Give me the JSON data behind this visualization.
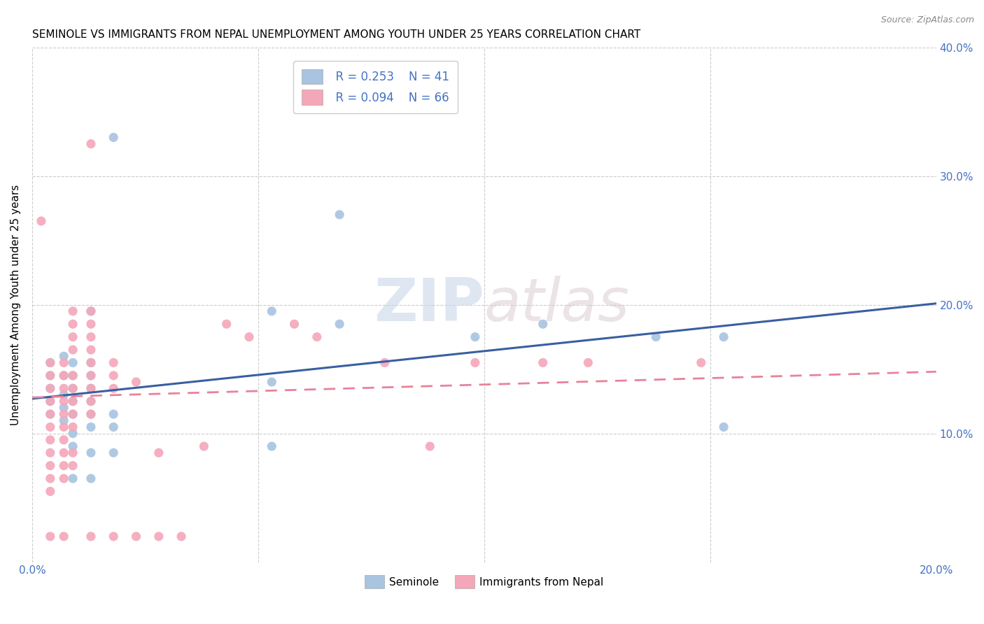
{
  "title": "SEMINOLE VS IMMIGRANTS FROM NEPAL UNEMPLOYMENT AMONG YOUTH UNDER 25 YEARS CORRELATION CHART",
  "source": "Source: ZipAtlas.com",
  "ylabel": "Unemployment Among Youth under 25 years",
  "xlim": [
    0.0,
    0.2
  ],
  "ylim": [
    0.0,
    0.4
  ],
  "xticks": [
    0.0,
    0.05,
    0.1,
    0.15,
    0.2
  ],
  "yticks": [
    0.0,
    0.1,
    0.2,
    0.3,
    0.4
  ],
  "xtick_labels": [
    "0.0%",
    "",
    "",
    "",
    "20.0%"
  ],
  "ytick_labels_left": [
    "",
    "",
    "",
    "",
    ""
  ],
  "ytick_labels_right": [
    "",
    "10.0%",
    "20.0%",
    "30.0%",
    "40.0%"
  ],
  "watermark_zip": "ZIP",
  "watermark_atlas": "atlas",
  "seminole_color": "#a8c4e0",
  "nepal_color": "#f4a7b9",
  "seminole_line_color": "#3a5fa0",
  "nepal_line_color": "#e8829a",
  "legend_R1": "R = 0.253",
  "legend_N1": "N = 41",
  "legend_R2": "R = 0.094",
  "legend_N2": "N = 66",
  "legend_label1": "Seminole",
  "legend_label2": "Immigrants from Nepal",
  "seminole_points": [
    [
      0.004,
      0.145
    ],
    [
      0.004,
      0.135
    ],
    [
      0.004,
      0.125
    ],
    [
      0.004,
      0.115
    ],
    [
      0.004,
      0.155
    ],
    [
      0.007,
      0.16
    ],
    [
      0.007,
      0.145
    ],
    [
      0.007,
      0.13
    ],
    [
      0.007,
      0.12
    ],
    [
      0.007,
      0.11
    ],
    [
      0.009,
      0.155
    ],
    [
      0.009,
      0.145
    ],
    [
      0.009,
      0.135
    ],
    [
      0.009,
      0.125
    ],
    [
      0.009,
      0.115
    ],
    [
      0.009,
      0.1
    ],
    [
      0.009,
      0.09
    ],
    [
      0.009,
      0.065
    ],
    [
      0.013,
      0.195
    ],
    [
      0.013,
      0.155
    ],
    [
      0.013,
      0.145
    ],
    [
      0.013,
      0.135
    ],
    [
      0.013,
      0.125
    ],
    [
      0.013,
      0.115
    ],
    [
      0.013,
      0.105
    ],
    [
      0.013,
      0.085
    ],
    [
      0.013,
      0.065
    ],
    [
      0.018,
      0.33
    ],
    [
      0.018,
      0.115
    ],
    [
      0.018,
      0.105
    ],
    [
      0.018,
      0.085
    ],
    [
      0.053,
      0.195
    ],
    [
      0.053,
      0.14
    ],
    [
      0.053,
      0.09
    ],
    [
      0.068,
      0.27
    ],
    [
      0.068,
      0.185
    ],
    [
      0.098,
      0.175
    ],
    [
      0.113,
      0.185
    ],
    [
      0.138,
      0.175
    ],
    [
      0.153,
      0.175
    ],
    [
      0.153,
      0.105
    ]
  ],
  "nepal_points": [
    [
      0.002,
      0.265
    ],
    [
      0.004,
      0.155
    ],
    [
      0.004,
      0.145
    ],
    [
      0.004,
      0.135
    ],
    [
      0.004,
      0.125
    ],
    [
      0.004,
      0.115
    ],
    [
      0.004,
      0.105
    ],
    [
      0.004,
      0.095
    ],
    [
      0.004,
      0.085
    ],
    [
      0.004,
      0.075
    ],
    [
      0.004,
      0.065
    ],
    [
      0.004,
      0.055
    ],
    [
      0.004,
      0.02
    ],
    [
      0.007,
      0.155
    ],
    [
      0.007,
      0.145
    ],
    [
      0.007,
      0.135
    ],
    [
      0.007,
      0.125
    ],
    [
      0.007,
      0.115
    ],
    [
      0.007,
      0.105
    ],
    [
      0.007,
      0.095
    ],
    [
      0.007,
      0.085
    ],
    [
      0.007,
      0.075
    ],
    [
      0.007,
      0.065
    ],
    [
      0.007,
      0.02
    ],
    [
      0.009,
      0.195
    ],
    [
      0.009,
      0.185
    ],
    [
      0.009,
      0.175
    ],
    [
      0.009,
      0.165
    ],
    [
      0.009,
      0.145
    ],
    [
      0.009,
      0.135
    ],
    [
      0.009,
      0.125
    ],
    [
      0.009,
      0.115
    ],
    [
      0.009,
      0.105
    ],
    [
      0.009,
      0.085
    ],
    [
      0.009,
      0.075
    ],
    [
      0.013,
      0.325
    ],
    [
      0.013,
      0.195
    ],
    [
      0.013,
      0.185
    ],
    [
      0.013,
      0.175
    ],
    [
      0.013,
      0.165
    ],
    [
      0.013,
      0.155
    ],
    [
      0.013,
      0.145
    ],
    [
      0.013,
      0.135
    ],
    [
      0.013,
      0.125
    ],
    [
      0.013,
      0.115
    ],
    [
      0.018,
      0.155
    ],
    [
      0.018,
      0.145
    ],
    [
      0.018,
      0.135
    ],
    [
      0.023,
      0.14
    ],
    [
      0.028,
      0.085
    ],
    [
      0.038,
      0.09
    ],
    [
      0.043,
      0.185
    ],
    [
      0.048,
      0.175
    ],
    [
      0.058,
      0.185
    ],
    [
      0.063,
      0.175
    ],
    [
      0.078,
      0.155
    ],
    [
      0.088,
      0.09
    ],
    [
      0.098,
      0.155
    ],
    [
      0.113,
      0.155
    ],
    [
      0.123,
      0.155
    ],
    [
      0.148,
      0.155
    ],
    [
      0.013,
      0.02
    ],
    [
      0.018,
      0.02
    ],
    [
      0.023,
      0.02
    ],
    [
      0.028,
      0.02
    ],
    [
      0.033,
      0.02
    ]
  ],
  "seminole_slope": 0.37,
  "seminole_intercept": 0.127,
  "nepal_slope": 0.1,
  "nepal_intercept": 0.128
}
